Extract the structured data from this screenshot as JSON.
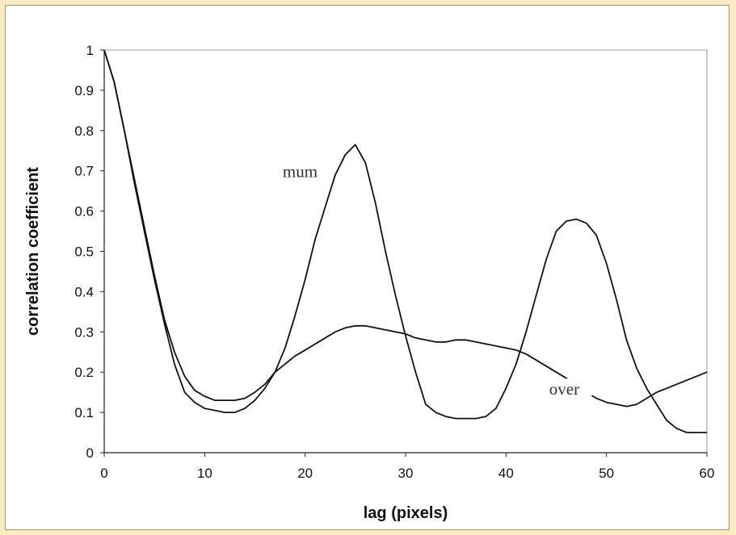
{
  "chart_data": {
    "type": "line",
    "xlabel": "lag (pixels)",
    "ylabel": "correlation coefficient",
    "xlim": [
      0,
      60
    ],
    "ylim": [
      0,
      1
    ],
    "x_ticks": [
      "0",
      "10",
      "20",
      "30",
      "40",
      "50",
      "60"
    ],
    "y_ticks": [
      "0",
      "0.1",
      "0.2",
      "0.3",
      "0.4",
      "0.5",
      "0.6",
      "0.7",
      "0.8",
      "0.9",
      "1"
    ],
    "grid": false,
    "legend": "none",
    "series": [
      {
        "name": "mum",
        "x": [
          0,
          1,
          2,
          3,
          4,
          5,
          6,
          7,
          8,
          9,
          10,
          11,
          12,
          13,
          14,
          15,
          16,
          17,
          18,
          19,
          20,
          21,
          22,
          23,
          24,
          25,
          26,
          27,
          28,
          29,
          30,
          31,
          32,
          33,
          34,
          35,
          36,
          37,
          38,
          39,
          40,
          41,
          42,
          43,
          44,
          45,
          46,
          47,
          48,
          49,
          50,
          51,
          52,
          53,
          54,
          55,
          56,
          57,
          58,
          59,
          60
        ],
        "y": [
          1.0,
          0.92,
          0.8,
          0.67,
          0.55,
          0.43,
          0.32,
          0.22,
          0.15,
          0.125,
          0.11,
          0.105,
          0.1,
          0.1,
          0.11,
          0.13,
          0.16,
          0.2,
          0.26,
          0.34,
          0.43,
          0.53,
          0.61,
          0.69,
          0.74,
          0.765,
          0.72,
          0.62,
          0.5,
          0.39,
          0.29,
          0.2,
          0.12,
          0.1,
          0.09,
          0.085,
          0.085,
          0.085,
          0.09,
          0.11,
          0.16,
          0.22,
          0.3,
          0.39,
          0.48,
          0.55,
          0.575,
          0.58,
          0.57,
          0.54,
          0.47,
          0.38,
          0.28,
          0.21,
          0.16,
          0.12,
          0.08,
          0.06,
          0.05,
          0.05,
          0.05
        ],
        "label_at": [
          19.5,
          0.69
        ]
      },
      {
        "name": "over",
        "x": [
          0,
          1,
          2,
          3,
          4,
          5,
          6,
          7,
          8,
          9,
          10,
          11,
          12,
          13,
          14,
          15,
          16,
          17,
          18,
          19,
          20,
          21,
          22,
          23,
          24,
          25,
          26,
          27,
          28,
          29,
          30,
          31,
          32,
          33,
          34,
          35,
          36,
          37,
          38,
          39,
          40,
          41,
          42,
          43,
          44,
          45,
          46,
          47,
          48,
          49,
          50,
          51,
          52,
          53,
          54,
          55,
          56,
          57,
          58,
          59,
          60
        ],
        "y": [
          1.0,
          0.92,
          0.8,
          0.68,
          0.56,
          0.44,
          0.33,
          0.25,
          0.19,
          0.155,
          0.14,
          0.13,
          0.13,
          0.13,
          0.135,
          0.15,
          0.17,
          0.2,
          0.22,
          0.24,
          0.255,
          0.27,
          0.285,
          0.3,
          0.31,
          0.315,
          0.315,
          0.31,
          0.305,
          0.3,
          0.295,
          0.285,
          0.28,
          0.275,
          0.275,
          0.28,
          0.28,
          0.275,
          0.27,
          0.265,
          0.26,
          0.255,
          0.245,
          0.23,
          0.215,
          0.2,
          0.185,
          0.17,
          0.15,
          0.135,
          0.125,
          0.12,
          0.115,
          0.12,
          0.135,
          0.15,
          0.16,
          0.17,
          0.18,
          0.19,
          0.2
        ],
        "label_at": [
          45.8,
          0.15
        ]
      }
    ],
    "colors": {
      "line": "#111111",
      "axis": "#222222",
      "label": "#333333"
    }
  }
}
